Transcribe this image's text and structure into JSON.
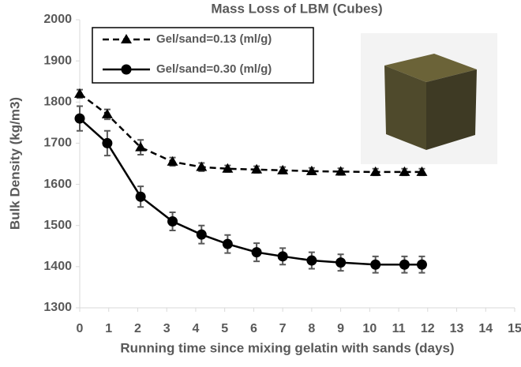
{
  "chart_data": {
    "type": "line",
    "title": "Mass Loss of LBM (Cubes)",
    "x_label": "Running time since mixing gelatin with sands (days)",
    "y_label": "Bulk Density (kg/m3)",
    "xlim": [
      0,
      15
    ],
    "xticks": [
      0,
      1,
      2,
      3,
      4,
      5,
      6,
      7,
      8,
      9,
      10,
      11,
      12,
      13,
      14,
      15
    ],
    "ylim": [
      1300,
      2000
    ],
    "yticks": [
      1300,
      1400,
      1500,
      1600,
      1700,
      1800,
      1900,
      2000
    ],
    "x": [
      0,
      0.95,
      2.1,
      3.2,
      4.2,
      5.1,
      6.1,
      7,
      8,
      9,
      10.2,
      11.2,
      11.8
    ],
    "series": [
      {
        "name": "Gel/sand=0.13 (ml/g)",
        "color": "#000000",
        "line_style": "dashed",
        "marker": "triangle",
        "values": [
          1820,
          1770,
          1690,
          1655,
          1642,
          1638,
          1636,
          1634,
          1632,
          1631,
          1630,
          1630,
          1630
        ],
        "errors": [
          10,
          12,
          18,
          10,
          10,
          8,
          8,
          8,
          8,
          8,
          8,
          8,
          8
        ]
      },
      {
        "name": "Gel/sand=0.30 (ml/g)",
        "color": "#000000",
        "line_style": "solid",
        "marker": "circle",
        "values": [
          1760,
          1700,
          1570,
          1510,
          1478,
          1455,
          1435,
          1425,
          1415,
          1410,
          1405,
          1405,
          1405
        ],
        "errors": [
          30,
          30,
          25,
          22,
          22,
          22,
          22,
          20,
          20,
          20,
          20,
          20,
          20
        ]
      }
    ]
  }
}
